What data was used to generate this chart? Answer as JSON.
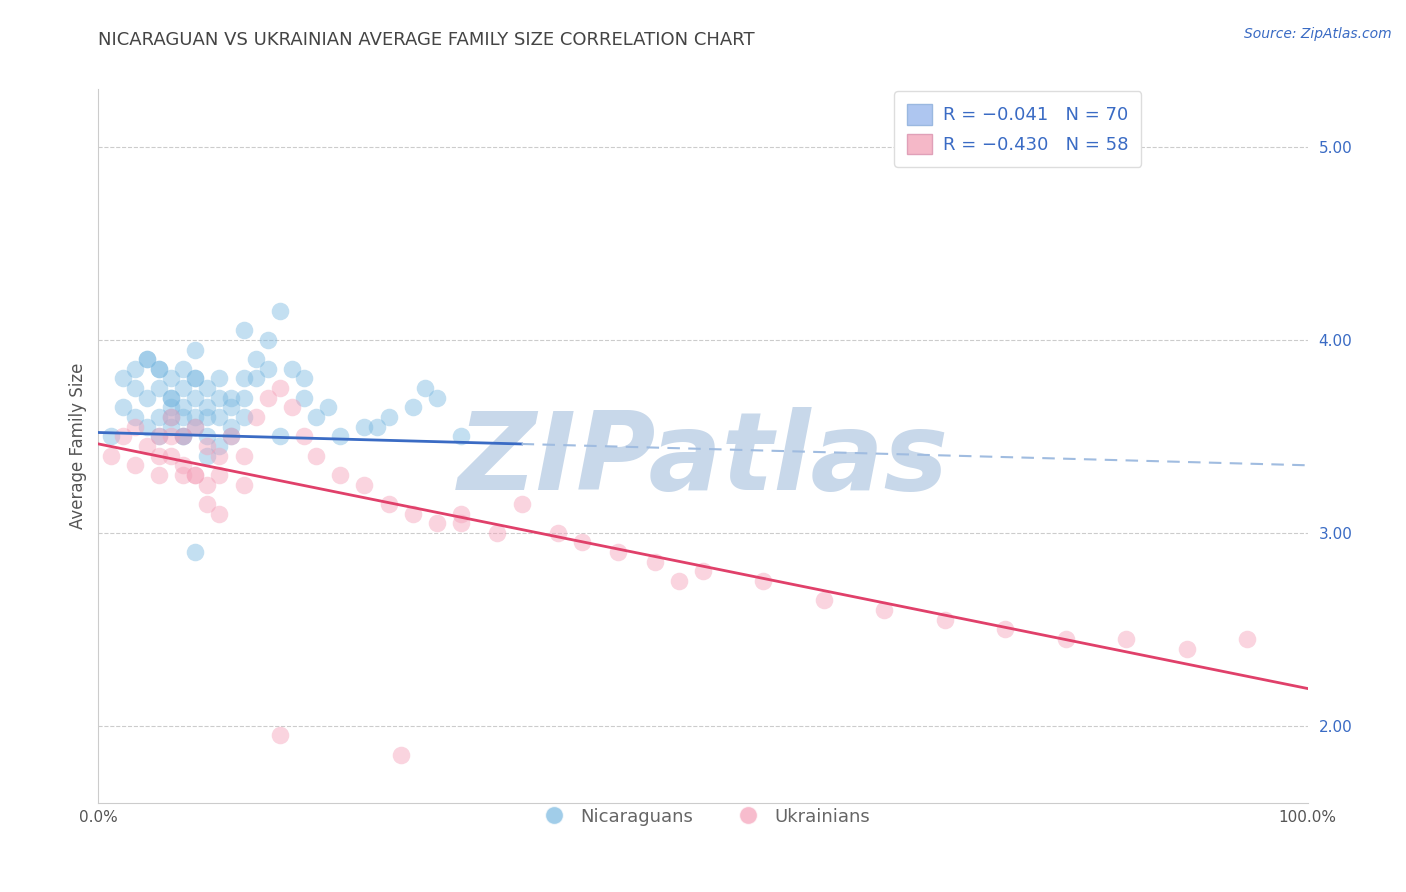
{
  "title": "NICARAGUAN VS UKRAINIAN AVERAGE FAMILY SIZE CORRELATION CHART",
  "source_text": "Source: ZipAtlas.com",
  "ylabel": "Average Family Size",
  "xlim": [
    0,
    100
  ],
  "ylim": [
    1.6,
    5.3
  ],
  "yticks_right": [
    2.0,
    3.0,
    4.0,
    5.0
  ],
  "xtick_labels": [
    "0.0%",
    "100.0%"
  ],
  "blue_color": "#7ab8e0",
  "pink_color": "#f4a0b8",
  "blue_line_color": "#3a6bc4",
  "blue_line_dash_color": "#a0bce0",
  "pink_line_color": "#e0406a",
  "background_color": "#ffffff",
  "grid_color": "#cccccc",
  "title_color": "#444444",
  "watermark_text": "ZIPatlas",
  "watermark_color": "#c8d8ea",
  "blue_scatter_x": [
    1,
    2,
    2,
    3,
    3,
    3,
    4,
    4,
    4,
    5,
    5,
    5,
    5,
    6,
    6,
    6,
    6,
    7,
    7,
    7,
    7,
    7,
    8,
    8,
    8,
    8,
    9,
    9,
    9,
    10,
    10,
    10,
    11,
    11,
    12,
    12,
    13,
    14,
    15,
    16,
    17,
    18,
    20,
    22,
    24,
    26,
    28,
    30,
    17,
    6,
    8,
    10,
    12,
    5,
    7,
    9,
    11,
    13,
    15,
    19,
    23,
    27,
    14,
    4,
    8,
    12,
    6,
    9,
    11,
    8
  ],
  "blue_scatter_y": [
    3.5,
    3.65,
    3.8,
    3.6,
    3.75,
    3.85,
    3.55,
    3.7,
    3.9,
    3.6,
    3.75,
    3.5,
    3.85,
    3.65,
    3.8,
    3.55,
    3.7,
    3.6,
    3.75,
    3.85,
    3.5,
    3.65,
    3.7,
    3.55,
    3.8,
    3.6,
    3.65,
    3.75,
    3.5,
    3.6,
    3.7,
    3.8,
    3.55,
    3.65,
    3.7,
    3.8,
    3.9,
    4.0,
    4.15,
    3.85,
    3.7,
    3.6,
    3.5,
    3.55,
    3.6,
    3.65,
    3.7,
    3.5,
    3.8,
    3.7,
    2.9,
    3.45,
    3.6,
    3.85,
    3.5,
    3.6,
    3.7,
    3.8,
    3.5,
    3.65,
    3.55,
    3.75,
    3.85,
    3.9,
    3.95,
    4.05,
    3.6,
    3.4,
    3.5,
    3.8
  ],
  "pink_scatter_x": [
    1,
    2,
    3,
    3,
    4,
    5,
    5,
    6,
    6,
    7,
    7,
    8,
    8,
    9,
    9,
    10,
    10,
    11,
    12,
    13,
    14,
    15,
    16,
    17,
    18,
    20,
    22,
    24,
    26,
    28,
    30,
    33,
    35,
    38,
    40,
    43,
    46,
    50,
    55,
    60,
    65,
    70,
    75,
    80,
    85,
    90,
    95,
    48,
    25,
    10,
    6,
    8,
    30,
    5,
    7,
    9,
    12,
    15
  ],
  "pink_scatter_y": [
    3.4,
    3.5,
    3.55,
    3.35,
    3.45,
    3.5,
    3.3,
    3.6,
    3.4,
    3.5,
    3.35,
    3.55,
    3.3,
    3.45,
    3.25,
    3.4,
    3.3,
    3.5,
    3.4,
    3.6,
    3.7,
    3.75,
    3.65,
    3.5,
    3.4,
    3.3,
    3.25,
    3.15,
    3.1,
    3.05,
    3.1,
    3.0,
    3.15,
    3.0,
    2.95,
    2.9,
    2.85,
    2.8,
    2.75,
    2.65,
    2.6,
    2.55,
    2.5,
    2.45,
    2.45,
    2.4,
    2.45,
    2.75,
    1.85,
    3.1,
    3.5,
    3.3,
    3.05,
    3.4,
    3.3,
    3.15,
    3.25,
    1.95
  ],
  "title_fontsize": 13,
  "axis_label_fontsize": 12,
  "tick_fontsize": 11,
  "legend_fontsize": 13,
  "source_fontsize": 10,
  "blue_line_solid_end": 35,
  "blue_line_y_start": 3.52,
  "blue_line_y_end": 3.35
}
